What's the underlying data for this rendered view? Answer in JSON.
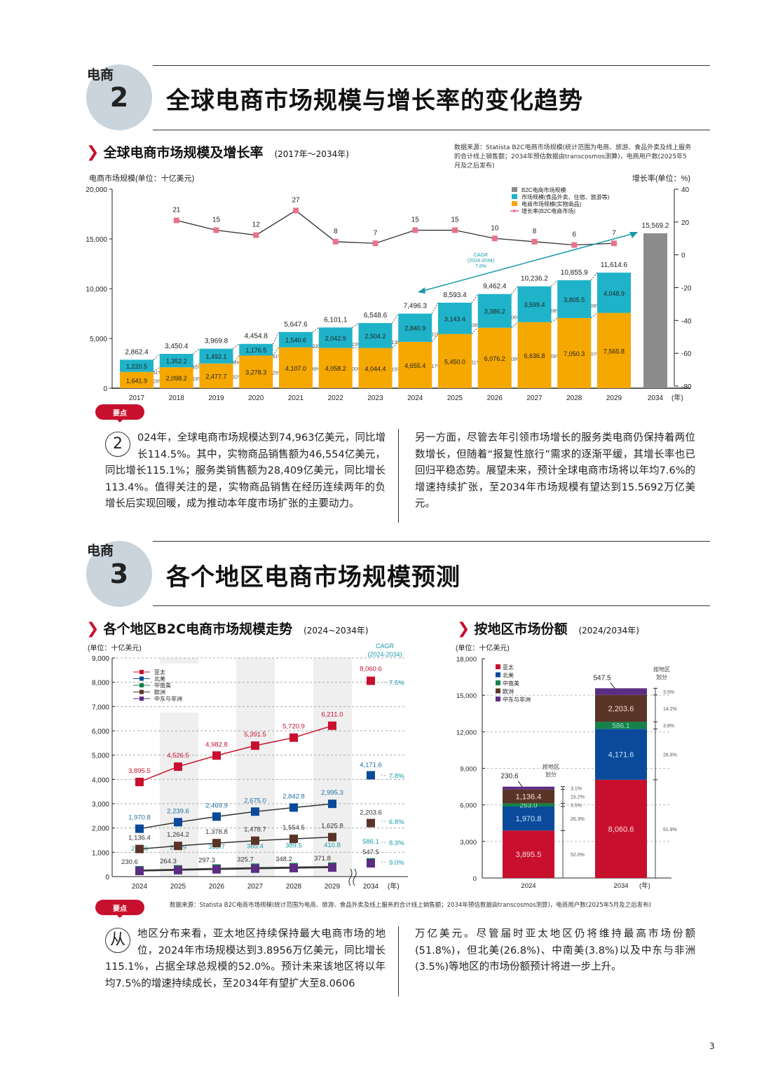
{
  "section2": {
    "tag": "电商",
    "number": "2",
    "title": "全球电商市场规模与增长率的变化趋势",
    "subtitle": "全球电商市场规模及增长率",
    "subtitle_range": "(2017年～2034年)",
    "source": "数据来源：Statista B2C电商市场规模(统计范围为电商、旅游、食品外卖及线上服务的合计线上销售额；2034年预估数据由transcosmos测算)，电商用户数(2025年5月及之后发布)",
    "keypoint_badge": "要点",
    "drop_char": "2",
    "para_left": "024年，全球电商市场规模达到74,963亿美元，同比增长114.5%。其中，实物商品销售额为46,554亿美元，同比增长115.1%；服务类销售额为28,409亿美元，同比增长113.4%。值得关注的是，实物商品销售在经历连续两年的负增长后实现回暖，成为推动本年度市场扩张的主要动力。",
    "para_right": "另一方面，尽管去年引领市场增长的服务类电商仍保持着两位数增长，但随着“报复性旅行”需求的逐渐平缓，其增长率也已回归平稳态势。展望未来，预计全球电商市场将以年均7.6%的增速持续扩张，至2034年市场规模有望达到15.5692万亿美元。"
  },
  "section3": {
    "tag": "电商",
    "number": "3",
    "title": "各个地区电商市场规模预测",
    "subtitle_left": "各个地区B2C电商市场规模走势",
    "subtitle_left_range": "(2024~2034年)",
    "subtitle_right": "按地区市场份额",
    "subtitle_right_range": "(2024/2034年)",
    "source": "数据来源：Statista B2C电商市场规模(统计范围为电商、旅游、食品外卖及线上服务的合计线上销售额；2034年预估数据由transcosmos测算)，电商用户数(2025年5月及之后发布)",
    "keypoint_badge": "要点",
    "drop_char": "从",
    "para_left": "地区分布来看，亚太地区持续保持最大电商市场的地位，2024年市场规模达到3.8956万亿美元，同比增长115.1%，占据全球总规模的52.0%。预计未来该地区将以年均7.5%的增速持续成长，至2034年有望扩大至8.0606",
    "para_right": "万亿美元。尽管届时亚太地区仍将维持最高市场份额(51.8%)，但北美(26.8%)、中南美(3.8%)以及中东与非洲(3.5%)等地区的市场份额预计将进一步上升。"
  },
  "page_number": "3",
  "colors": {
    "accent": "#c8102e",
    "teal": "#1fb3c9",
    "orange": "#f5a800",
    "grey": "#8c8c8c"
  },
  "chart_data": [
    {
      "type": "bar",
      "title": "全球电商市场规模及增长率",
      "ylabel": "电商市场规模(单位：十亿美元)",
      "y2label": "增长率(单位：%)",
      "ylim": [
        0,
        20000
      ],
      "y2lim": [
        -80,
        40
      ],
      "yticks": [
        "0",
        "5,000",
        "10,000",
        "15,000",
        "20,000"
      ],
      "y2ticks": [
        "-80",
        "-60",
        "-40",
        "-20",
        "0",
        "20",
        "40"
      ],
      "categories": [
        "2017",
        "2018",
        "2019",
        "2020",
        "2021",
        "2022",
        "2023",
        "2024",
        "2025",
        "2026",
        "2027",
        "2028",
        "2029",
        "2034"
      ],
      "x_unit": "(年)",
      "legend": [
        "B2C电商市场规模",
        "市场规模(食品外卖、住宿、旅游等)",
        "电商市场规模(实物商品)",
        "增长率(B2C电商市场)"
      ],
      "series": [
        {
          "name": "电商市场规模(实物商品)",
          "values": [
            1641.9,
            2098.2,
            2477.7,
            3278.3,
            4107.0,
            4058.2,
            4044.4,
            4655.4,
            5450.0,
            6076.2,
            6636.8,
            7050.3,
            7565.8,
            null
          ],
          "labels": [
            "1,641.9",
            "2,098.2",
            "2,477.7",
            "3,278.3",
            "4,107.0",
            "4,058.2",
            "4,044.4",
            "4,655.4",
            "5,450.0",
            "6,076.2",
            "6,636.8",
            "7,050.3",
            "7,565.8",
            ""
          ]
        },
        {
          "name": "市场规模(食品外卖、住宿、旅游等)",
          "values": [
            1220.5,
            1352.2,
            1492.1,
            1176.5,
            1540.6,
            2042.9,
            2504.2,
            2840.9,
            3143.4,
            3386.2,
            3599.4,
            3805.5,
            4048.9,
            null
          ],
          "labels": [
            "1,220.5",
            "1,352.2",
            "1,492.1",
            "1,176.5",
            "1,540.6",
            "2,042.9",
            "2,504.2",
            "2,840.9",
            "3,143.4",
            "3,386.2",
            "3,599.4",
            "3,805.5",
            "4,048.9",
            ""
          ]
        },
        {
          "name": "B2C电商市场规模",
          "totals": [
            2862.4,
            3450.4,
            3969.8,
            4454.8,
            5647.6,
            6101.1,
            6548.6,
            7496.3,
            8593.4,
            9462.4,
            10236.2,
            10855.9,
            11614.6,
            15569.2
          ],
          "labels": [
            "2,862.4",
            "3,450.4",
            "3,969.8",
            "4,454.8",
            "5,647.6",
            "6,101.1",
            "6,548.6",
            "7,496.3",
            "8,593.4",
            "9,462.4",
            "10,236.2",
            "10,855.9",
            "11,614.6",
            "15,569.2"
          ]
        },
        {
          "name": "增长率(B2C电商市场)",
          "values": [
            null,
            21,
            15,
            12,
            27,
            8,
            7,
            15,
            15,
            10,
            8,
            6,
            7,
            null
          ]
        }
      ],
      "growth_service_pct": [
        "111%",
        "110%",
        "79%",
        "131%",
        "133%",
        "123%",
        "113%",
        "111%",
        "108%",
        "106%",
        "106%",
        "106%"
      ],
      "growth_goods_pct": [
        "128%",
        "118%",
        "132%",
        "125%",
        "99%",
        "100%",
        "115%",
        "117%",
        "111%",
        "109%",
        "106%",
        "107%"
      ],
      "cagr_annotation": [
        "CAGR",
        "(2024-2034)",
        "7.6%"
      ]
    },
    {
      "type": "line",
      "title": "各个地区B2C电商市场规模走势",
      "ylabel": "(单位：十亿美元)",
      "ylim": [
        0,
        9000
      ],
      "yticks": [
        "0",
        "1,000",
        "2,000",
        "3,000",
        "4,000",
        "5,000",
        "6,000",
        "7,000",
        "8,000",
        "9,000"
      ],
      "x": [
        "2024",
        "2025",
        "2026",
        "2027",
        "2028",
        "2029",
        "2034"
      ],
      "x_unit": "(年)",
      "cagr_header": [
        "CAGR",
        "(2024-2034)"
      ],
      "series": [
        {
          "name": "亚太",
          "color": "#c8102e",
          "values": [
            3895.5,
            4526.5,
            4982.8,
            5391.5,
            5720.9,
            6211.0,
            8060.6
          ],
          "labels": [
            "3,895.5",
            "4,526.5",
            "4,982.8",
            "5,391.5",
            "5,720.9",
            "6,211.0",
            "8,060.6"
          ],
          "cagr": "7.5%"
        },
        {
          "name": "北美",
          "color": "#0b4a9a",
          "values": [
            1970.8,
            2239.6,
            2469.9,
            2675.0,
            2842.8,
            2995.3,
            4171.6
          ],
          "labels": [
            "1,970.8",
            "2,239.6",
            "2,469.9",
            "2,675.0",
            "2,842.8",
            "2,995.3",
            "4,171.6"
          ],
          "cagr": "7.8%"
        },
        {
          "name": "中南美",
          "color": "#14804a",
          "values": [
            263.0,
            298.9,
            333.7,
            365.4,
            389.5,
            410.8,
            586.1
          ],
          "labels": [
            "263.0",
            "298.9",
            "333.7",
            "365.4",
            "389.5",
            "410.8",
            "586.1"
          ],
          "cagr": "8.3%"
        },
        {
          "name": "欧洲",
          "color": "#5a3426",
          "values": [
            1136.4,
            1264.2,
            1378.8,
            1478.7,
            1554.5,
            1625.8,
            2203.6
          ],
          "labels": [
            "1,136.4",
            "1,264.2",
            "1,378.8",
            "1,478.7",
            "1,554.5",
            "1,625.8",
            "2,203.6"
          ],
          "cagr": "6.8%"
        },
        {
          "name": "中东与非洲",
          "color": "#5b2d82",
          "values": [
            230.6,
            264.3,
            297.3,
            325.7,
            348.2,
            371.8,
            547.5
          ],
          "labels": [
            "230.6",
            "264.3",
            "297.3",
            "325.7",
            "348.2",
            "371.8",
            "547.5"
          ],
          "cagr": "9.0%"
        }
      ]
    },
    {
      "type": "bar",
      "title": "按地区市场份额",
      "ylabel": "(单位：十亿美元)",
      "ylim": [
        0,
        18000
      ],
      "yticks": [
        "0",
        "3,000",
        "6,000",
        "9,000",
        "12,000",
        "15,000",
        "18,000"
      ],
      "categories": [
        "2024",
        "2034"
      ],
      "x_unit": "(年)",
      "share_header": "按地区划分",
      "series": [
        {
          "name": "亚太",
          "color": "#c8102e",
          "values": [
            3895.5,
            8060.6
          ],
          "labels": [
            "3,895.5",
            "8,060.6"
          ],
          "share": [
            "52.0%",
            "51.8%"
          ]
        },
        {
          "name": "北美",
          "color": "#0b4a9a",
          "values": [
            1970.8,
            4171.6
          ],
          "labels": [
            "1,970.8",
            "4,171.6"
          ],
          "share": [
            "26.3%",
            "26.8%"
          ]
        },
        {
          "name": "中南美",
          "color": "#14804a",
          "values": [
            263.0,
            586.1
          ],
          "labels": [
            "263.0",
            "586.1"
          ],
          "share": [
            "3.5%",
            "3.8%"
          ]
        },
        {
          "name": "欧洲",
          "color": "#5a3426",
          "values": [
            1136.4,
            2203.6
          ],
          "labels": [
            "1,136.4",
            "2,203.6"
          ],
          "share": [
            "15.2%",
            "14.2%"
          ]
        },
        {
          "name": "中东与非洲",
          "color": "#5b2d82",
          "values": [
            230.6,
            547.5
          ],
          "labels": [
            "230.6",
            "547.5"
          ],
          "share": [
            "3.1%",
            "3.5%"
          ]
        }
      ]
    }
  ]
}
